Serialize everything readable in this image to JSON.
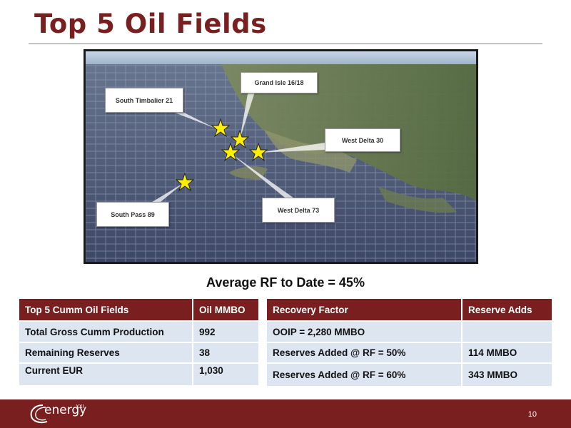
{
  "slide": {
    "title": "Top 5 Oil Fields",
    "page_number": "10"
  },
  "map": {
    "callouts": [
      {
        "name": "South Timbalier 21"
      },
      {
        "name": "Grand Isle 16/18"
      },
      {
        "name": "West Delta 30"
      },
      {
        "name": "West Delta 73"
      },
      {
        "name": "South Pass 89"
      }
    ]
  },
  "summary": {
    "heading": "Average RF to Date = 45%"
  },
  "table_left": {
    "headers": [
      "Top 5 Cumm Oil Fields",
      "Oil MMBO"
    ],
    "rows": [
      [
        "Total Gross Cumm Production",
        "992"
      ],
      [
        "Remaining Reserves",
        "38"
      ],
      [
        "Current EUR",
        "1,030"
      ]
    ]
  },
  "table_right": {
    "headers": [
      "Recovery Factor",
      "Reserve Adds"
    ],
    "rows": [
      [
        "OOIP = 2,280 MMBO",
        ""
      ],
      [
        "Reserves Added @ RF = 50%",
        "114 MMBO"
      ],
      [
        "Reserves Added @ RF = 60%",
        "343 MMBO"
      ]
    ]
  },
  "footer": {
    "logo_text": "energy",
    "logo_superscript": "XXI"
  },
  "colors": {
    "brand": "#7a1f1f",
    "table_cell": "#dde5f0",
    "star": "#ffef00"
  }
}
